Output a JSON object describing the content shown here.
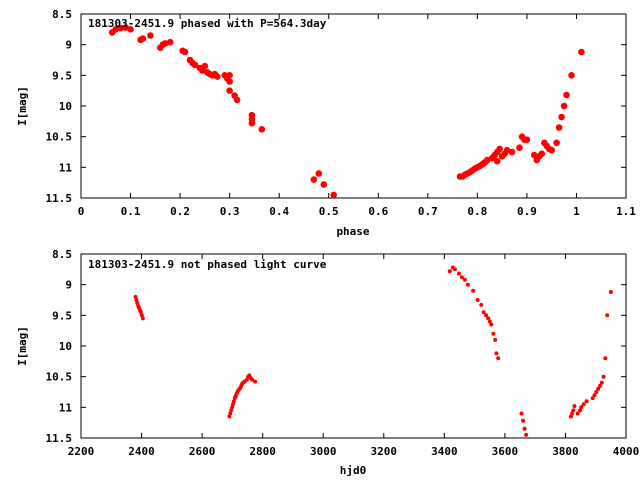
{
  "chart_data": [
    {
      "type": "scatter",
      "title": "181303-2451.9 phased with P=564.3day",
      "xlabel": "phase",
      "ylabel": "I[mag]",
      "xlim": [
        0,
        1.1
      ],
      "ylim": [
        11.5,
        8.5
      ],
      "y_inverted": true,
      "grid": false,
      "legend": "none",
      "color": "#ff0000",
      "marker": "filled-circle-large",
      "xticks": [
        "0",
        "0.1",
        "0.2",
        "0.3",
        "0.4",
        "0.5",
        "0.6",
        "0.7",
        "0.8",
        "0.9",
        "1",
        "1.1"
      ],
      "yticks": [
        "8.5",
        "9",
        "9.5",
        "10",
        "10.5",
        "11",
        "11.5"
      ],
      "x": [
        0.063,
        0.07,
        0.08,
        0.09,
        0.1,
        0.12,
        0.125,
        0.14,
        0.16,
        0.165,
        0.17,
        0.18,
        0.205,
        0.21,
        0.22,
        0.225,
        0.23,
        0.24,
        0.245,
        0.25,
        0.255,
        0.26,
        0.265,
        0.27,
        0.275,
        0.29,
        0.295,
        0.3,
        0.3,
        0.3,
        0.31,
        0.315,
        0.345,
        0.345,
        0.345,
        0.365,
        0.47,
        0.48,
        0.49,
        0.51,
        0.765,
        0.77,
        0.775,
        0.78,
        0.785,
        0.79,
        0.795,
        0.8,
        0.805,
        0.81,
        0.815,
        0.82,
        0.83,
        0.835,
        0.84,
        0.84,
        0.845,
        0.85,
        0.855,
        0.86,
        0.87,
        0.885,
        0.89,
        0.895,
        0.9,
        0.915,
        0.92,
        0.925,
        0.93,
        0.935,
        0.94,
        0.945,
        0.95,
        0.96,
        0.965,
        0.97,
        0.975,
        0.98,
        0.99,
        1.01
      ],
      "y": [
        8.8,
        8.75,
        8.73,
        8.72,
        8.75,
        8.92,
        8.9,
        8.85,
        9.05,
        9.0,
        8.98,
        8.96,
        9.1,
        9.12,
        9.25,
        9.3,
        9.33,
        9.38,
        9.42,
        9.35,
        9.45,
        9.48,
        9.5,
        9.48,
        9.52,
        9.5,
        9.55,
        9.6,
        9.75,
        9.5,
        9.83,
        9.9,
        10.15,
        10.22,
        10.28,
        10.38,
        11.2,
        11.1,
        11.28,
        11.45,
        11.15,
        11.15,
        11.12,
        11.1,
        11.08,
        11.05,
        11.02,
        11.0,
        10.98,
        10.95,
        10.92,
        10.88,
        10.85,
        10.8,
        10.75,
        10.9,
        10.7,
        10.82,
        10.78,
        10.72,
        10.75,
        10.68,
        10.5,
        10.55,
        10.55,
        10.8,
        10.88,
        10.82,
        10.78,
        10.6,
        10.65,
        10.7,
        10.72,
        10.6,
        10.35,
        10.18,
        10.0,
        9.82,
        9.5,
        9.12
      ]
    },
    {
      "type": "scatter",
      "title": "181303-2451.9 not phased light curve",
      "xlabel": "hjd0",
      "ylabel": "I[mag]",
      "xlim": [
        2200,
        4000
      ],
      "ylim": [
        11.5,
        8.5
      ],
      "y_inverted": true,
      "grid": false,
      "legend": "none",
      "color": "#ff0000",
      "marker": "filled-circle-small",
      "xticks": [
        "2200",
        "2400",
        "2600",
        "2800",
        "3000",
        "3200",
        "3400",
        "3600",
        "3800",
        "4000"
      ],
      "yticks": [
        "8.5",
        "9",
        "9.5",
        "10",
        "10.5",
        "11",
        "11.5"
      ],
      "x": [
        2380,
        2383,
        2386,
        2389,
        2392,
        2395,
        2398,
        2401,
        2404,
        2690,
        2693,
        2696,
        2699,
        2702,
        2705,
        2708,
        2711,
        2714,
        2717,
        2720,
        2723,
        2726,
        2729,
        2732,
        2735,
        2740,
        2748,
        2752,
        2756,
        2760,
        2765,
        2775,
        3418,
        3428,
        3435,
        3448,
        3458,
        3468,
        3478,
        3495,
        3510,
        3522,
        3530,
        3538,
        3545,
        3550,
        3555,
        3562,
        3568,
        3572,
        3578,
        3655,
        3660,
        3665,
        3670,
        3818,
        3822,
        3826,
        3830,
        3840,
        3848,
        3852,
        3860,
        3870,
        3890,
        3896,
        3902,
        3908,
        3914,
        3920,
        3926,
        3932,
        3938,
        3950
      ],
      "y": [
        9.2,
        9.25,
        9.3,
        9.35,
        9.38,
        9.42,
        9.45,
        9.5,
        9.55,
        11.15,
        11.1,
        11.05,
        11.0,
        10.95,
        10.9,
        10.85,
        10.82,
        10.78,
        10.75,
        10.72,
        10.7,
        10.68,
        10.65,
        10.62,
        10.6,
        10.58,
        10.55,
        10.5,
        10.48,
        10.52,
        10.55,
        10.58,
        8.78,
        8.72,
        8.75,
        8.82,
        8.88,
        8.92,
        9.0,
        9.1,
        9.25,
        9.33,
        9.45,
        9.5,
        9.55,
        9.6,
        9.65,
        9.8,
        9.9,
        10.12,
        10.2,
        11.1,
        11.22,
        11.35,
        11.45,
        11.15,
        11.1,
        11.05,
        10.98,
        11.1,
        11.05,
        11.0,
        10.95,
        10.9,
        10.85,
        10.8,
        10.75,
        10.7,
        10.65,
        10.6,
        10.5,
        10.2,
        9.5,
        9.12
      ]
    }
  ]
}
